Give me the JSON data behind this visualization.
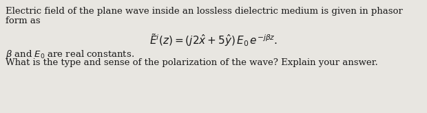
{
  "background_color": "#e8e6e1",
  "text_color": "#1a1a1a",
  "line1": "Electric field of the plane wave inside an lossless dielectric medium is given in phasor",
  "line2": "form as",
  "equation": "$\\tilde{E}^i(z) = (j2\\hat{x} + 5\\hat{y})\\, E_0\\, e^{-j\\beta z}.$",
  "line4": "$\\beta$ and $E_0$ are real constants.",
  "line5": "What is the type and sense of the polarization of the wave? Explain your answer.",
  "fig_width": 6.2,
  "fig_height": 1.65,
  "dpi": 100,
  "body_fontsize": 9.5,
  "eq_fontsize": 11
}
